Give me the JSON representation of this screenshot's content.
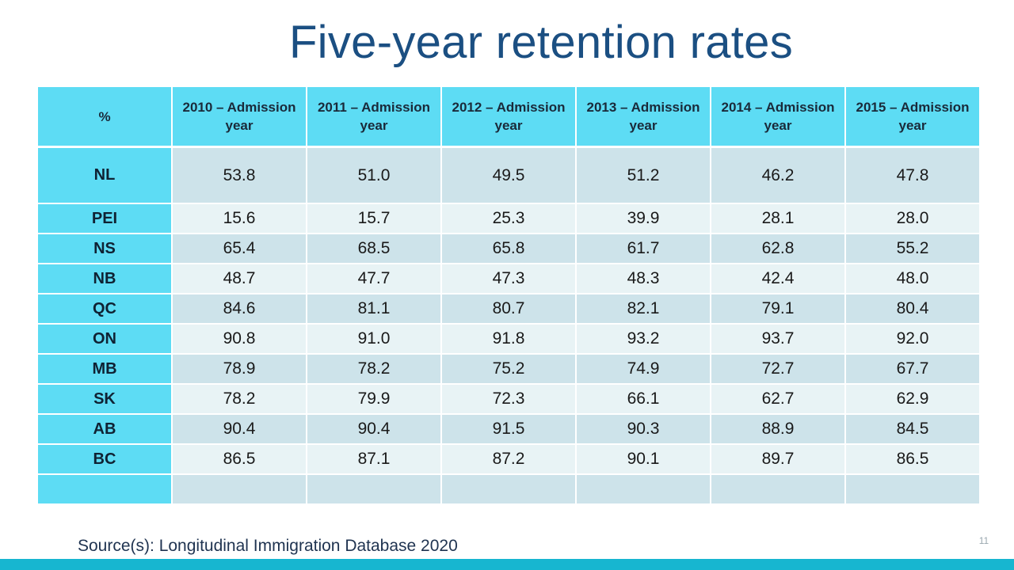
{
  "slide": {
    "title": "Five-year retention rates",
    "source": "Source(s): Longitudinal Immigration Database 2020",
    "page_number": "11",
    "colors": {
      "title": "#1b4f82",
      "header_bg": "#5ddcf4",
      "row_dark": "#cde3ea",
      "row_light": "#e8f3f5",
      "bottom_band": "#17b6d0"
    }
  },
  "table": {
    "corner_label": "%",
    "columns": [
      "2010 – Admission year",
      "2011 – Admission year",
      "2012 – Admission year",
      "2013 – Admission year",
      "2014 – Admission year",
      "2015 – Admission year"
    ],
    "rows": [
      {
        "label": "NL",
        "values": [
          "53.8",
          "51.0",
          "49.5",
          "51.2",
          "46.2",
          "47.8"
        ]
      },
      {
        "label": "PEI",
        "values": [
          "15.6",
          "15.7",
          "25.3",
          "39.9",
          "28.1",
          "28.0"
        ]
      },
      {
        "label": "NS",
        "values": [
          "65.4",
          "68.5",
          "65.8",
          "61.7",
          "62.8",
          "55.2"
        ]
      },
      {
        "label": "NB",
        "values": [
          "48.7",
          "47.7",
          "47.3",
          "48.3",
          "42.4",
          "48.0"
        ]
      },
      {
        "label": "QC",
        "values": [
          "84.6",
          "81.1",
          "80.7",
          "82.1",
          "79.1",
          "80.4"
        ]
      },
      {
        "label": "ON",
        "values": [
          "90.8",
          "91.0",
          "91.8",
          "93.2",
          "93.7",
          "92.0"
        ]
      },
      {
        "label": "MB",
        "values": [
          "78.9",
          "78.2",
          "75.2",
          "74.9",
          "72.7",
          "67.7"
        ]
      },
      {
        "label": "SK",
        "values": [
          "78.2",
          "79.9",
          "72.3",
          "66.1",
          "62.7",
          "62.9"
        ]
      },
      {
        "label": "AB",
        "values": [
          "90.4",
          "90.4",
          "91.5",
          "90.3",
          "88.9",
          "84.5"
        ]
      },
      {
        "label": "BC",
        "values": [
          "86.5",
          "87.1",
          "87.2",
          "90.1",
          "89.7",
          "86.5"
        ]
      },
      {
        "label": "",
        "values": [
          "",
          "",
          "",
          "",
          "",
          ""
        ]
      }
    ]
  }
}
